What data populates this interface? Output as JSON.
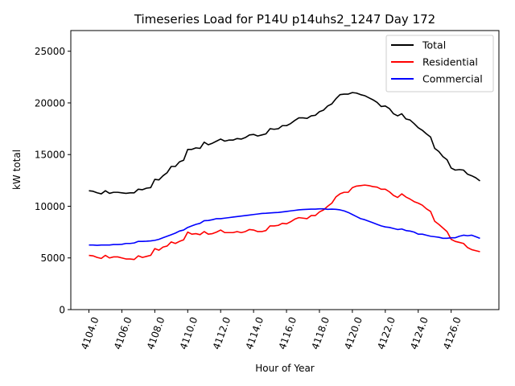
{
  "chart_data": {
    "type": "line",
    "title": "Timeseries Load for P14U p14uhs2_1247  Day 172",
    "xlabel": "Hour of Year",
    "ylabel": "kW total",
    "xlim": [
      4102.9,
      4128.9
    ],
    "ylim": [
      0,
      27000
    ],
    "xticks": [
      4104,
      4106,
      4108,
      4110,
      4112,
      4114,
      4116,
      4118,
      4120,
      4122,
      4124,
      4126
    ],
    "xtick_labels": [
      "4104.0",
      "4106.0",
      "4108.0",
      "4110.0",
      "4112.0",
      "4114.0",
      "4116.0",
      "4118.0",
      "4120.0",
      "4122.0",
      "4124.0",
      "4126.0"
    ],
    "yticks": [
      0,
      5000,
      10000,
      15000,
      20000,
      25000
    ],
    "ytick_labels": [
      "0",
      "5000",
      "10000",
      "15000",
      "20000",
      "25000"
    ],
    "legend_position": "top-right",
    "x_start": 4104.0,
    "x_step": 0.25,
    "series": [
      {
        "name": "Total",
        "color": "#000000",
        "values": [
          11500,
          11450,
          11300,
          11200,
          11500,
          11250,
          11350,
          11350,
          11300,
          11250,
          11300,
          11300,
          11650,
          11600,
          11750,
          11800,
          12600,
          12550,
          12950,
          13250,
          13850,
          13850,
          14300,
          14450,
          15500,
          15500,
          15650,
          15600,
          16200,
          15950,
          16100,
          16300,
          16500,
          16300,
          16400,
          16400,
          16550,
          16500,
          16650,
          16900,
          16950,
          16800,
          16900,
          17000,
          17500,
          17450,
          17500,
          17800,
          17800,
          18000,
          18300,
          18550,
          18550,
          18500,
          18750,
          18800,
          19150,
          19300,
          19700,
          19900,
          20400,
          20800,
          20850,
          20850,
          21000,
          20950,
          20800,
          20700,
          20500,
          20300,
          20050,
          19650,
          19700,
          19450,
          18950,
          18750,
          18950,
          18450,
          18350,
          18000,
          17600,
          17350,
          17000,
          16700,
          15600,
          15300,
          14800,
          14500,
          13700,
          13500,
          13550,
          13500,
          13100,
          12950,
          12750,
          12450
        ]
      },
      {
        "name": "Residential",
        "color": "#ff0000",
        "values": [
          5250,
          5200,
          5050,
          4950,
          5250,
          5000,
          5100,
          5100,
          5000,
          4900,
          4900,
          4850,
          5200,
          5050,
          5150,
          5250,
          5900,
          5750,
          6050,
          6150,
          6550,
          6400,
          6600,
          6750,
          7500,
          7300,
          7350,
          7250,
          7550,
          7300,
          7350,
          7500,
          7700,
          7450,
          7450,
          7450,
          7550,
          7450,
          7550,
          7750,
          7700,
          7550,
          7550,
          7650,
          8100,
          8100,
          8150,
          8350,
          8300,
          8500,
          8750,
          8900,
          8850,
          8800,
          9100,
          9100,
          9450,
          9650,
          10000,
          10300,
          10900,
          11200,
          11350,
          11350,
          11800,
          11950,
          12000,
          12050,
          12000,
          11900,
          11850,
          11650,
          11650,
          11400,
          11050,
          10850,
          11200,
          10900,
          10700,
          10450,
          10300,
          10100,
          9750,
          9500,
          8550,
          8250,
          7900,
          7550,
          6800,
          6600,
          6500,
          6400,
          6000,
          5800,
          5700,
          5600
        ]
      },
      {
        "name": "Commercial",
        "color": "#0000ff",
        "values": [
          6250,
          6250,
          6220,
          6250,
          6250,
          6250,
          6300,
          6300,
          6320,
          6400,
          6400,
          6450,
          6600,
          6600,
          6620,
          6650,
          6700,
          6800,
          6950,
          7100,
          7250,
          7400,
          7600,
          7700,
          7950,
          8100,
          8250,
          8350,
          8600,
          8620,
          8700,
          8800,
          8800,
          8850,
          8900,
          8950,
          9000,
          9050,
          9100,
          9150,
          9200,
          9250,
          9300,
          9320,
          9350,
          9380,
          9400,
          9450,
          9500,
          9550,
          9600,
          9650,
          9680,
          9700,
          9720,
          9720,
          9750,
          9750,
          9700,
          9720,
          9700,
          9650,
          9550,
          9400,
          9200,
          9000,
          8800,
          8700,
          8550,
          8400,
          8250,
          8100,
          8000,
          7950,
          7850,
          7750,
          7800,
          7650,
          7600,
          7500,
          7300,
          7300,
          7200,
          7100,
          7050,
          7000,
          6900,
          6900,
          6950,
          6950,
          7100,
          7200,
          7150,
          7200,
          7050,
          6900
        ]
      }
    ]
  }
}
